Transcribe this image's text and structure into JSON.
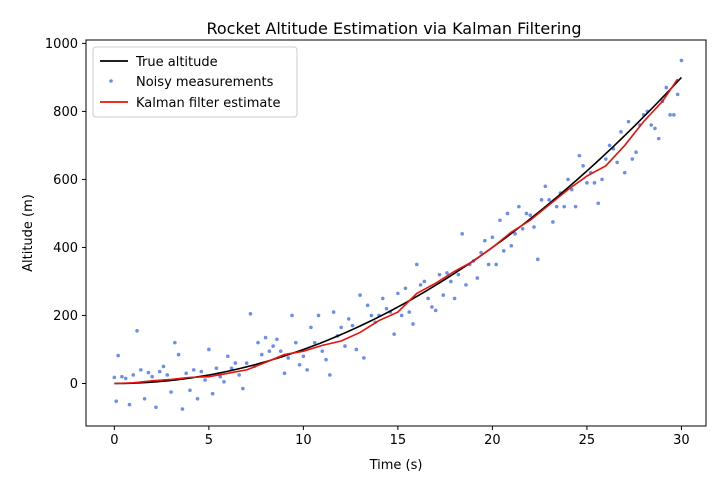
{
  "chart_data": {
    "type": "line",
    "title": "Rocket Altitude Estimation via Kalman Filtering",
    "xlabel": "Time (s)",
    "ylabel": "Altitude (m)",
    "xlim": [
      -1.5,
      31.3
    ],
    "ylim": [
      -125,
      1010
    ],
    "xticks": [
      0,
      5,
      10,
      15,
      20,
      25,
      30
    ],
    "yticks": [
      0,
      200,
      400,
      600,
      800,
      1000
    ],
    "grid": false,
    "legend_position": "top-left",
    "legend": [
      "True altitude",
      "Noisy measurements",
      "Kalman filter estimate"
    ],
    "series": [
      {
        "name": "True altitude",
        "kind": "line",
        "color": "#000000",
        "model": "altitude = 1.0 * t^2",
        "x": [
          0,
          2,
          4,
          6,
          8,
          10,
          12,
          14,
          16,
          18,
          20,
          22,
          24,
          26,
          28,
          30
        ],
        "y": [
          0,
          4,
          16,
          36,
          64,
          100,
          144,
          196,
          256,
          324,
          400,
          484,
          576,
          676,
          784,
          900
        ]
      },
      {
        "name": "Noisy measurements",
        "kind": "scatter",
        "color": "#6a8ef0",
        "noise_std": 50,
        "x": [
          0,
          0.1,
          0.2,
          0.4,
          0.6,
          0.8,
          1.0,
          1.2,
          1.4,
          1.6,
          1.8,
          2.0,
          2.2,
          2.4,
          2.6,
          2.8,
          3.0,
          3.2,
          3.4,
          3.6,
          3.8,
          4.0,
          4.2,
          4.4,
          4.6,
          4.8,
          5.0,
          5.2,
          5.4,
          5.6,
          5.8,
          6.0,
          6.2,
          6.4,
          6.6,
          6.8,
          7.0,
          7.2,
          7.4,
          7.6,
          7.8,
          8.0,
          8.2,
          8.4,
          8.6,
          8.8,
          9.0,
          9.2,
          9.4,
          9.6,
          9.8,
          10.0,
          10.2,
          10.4,
          10.6,
          10.8,
          11.0,
          11.2,
          11.4,
          11.6,
          11.8,
          12.0,
          12.2,
          12.4,
          12.6,
          12.8,
          13.0,
          13.2,
          13.4,
          13.6,
          13.8,
          14.0,
          14.2,
          14.4,
          14.6,
          14.8,
          15.0,
          15.2,
          15.4,
          15.6,
          15.8,
          16.0,
          16.2,
          16.4,
          16.6,
          16.8,
          17.0,
          17.2,
          17.4,
          17.6,
          17.8,
          18.0,
          18.2,
          18.4,
          18.6,
          18.8,
          19.0,
          19.2,
          19.4,
          19.6,
          19.8,
          20.0,
          20.2,
          20.4,
          20.6,
          20.8,
          21.0,
          21.2,
          21.4,
          21.6,
          21.8,
          22.0,
          22.2,
          22.4,
          22.6,
          22.8,
          23.0,
          23.2,
          23.4,
          23.6,
          23.8,
          24.0,
          24.2,
          24.4,
          24.6,
          24.8,
          25.0,
          25.2,
          25.4,
          25.6,
          25.8,
          26.0,
          26.2,
          26.4,
          26.6,
          26.8,
          27.0,
          27.2,
          27.4,
          27.6,
          27.8,
          28.0,
          28.2,
          28.4,
          28.6,
          28.8,
          29.0,
          29.2,
          29.4,
          29.6,
          29.8,
          30.0
        ],
        "y": [
          18,
          -52,
          82,
          20,
          15,
          -62,
          25,
          155,
          40,
          -45,
          32,
          20,
          -70,
          35,
          50,
          25,
          -25,
          120,
          85,
          -75,
          30,
          -20,
          40,
          -45,
          35,
          10,
          100,
          -30,
          45,
          20,
          5,
          80,
          45,
          60,
          25,
          -15,
          60,
          205,
          50,
          120,
          85,
          135,
          95,
          110,
          130,
          95,
          30,
          75,
          200,
          120,
          55,
          80,
          40,
          165,
          120,
          200,
          95,
          70,
          25,
          210,
          140,
          165,
          110,
          190,
          170,
          100,
          260,
          75,
          230,
          200,
          180,
          200,
          250,
          220,
          210,
          145,
          265,
          200,
          280,
          210,
          175,
          350,
          290,
          300,
          250,
          225,
          215,
          320,
          260,
          325,
          300,
          250,
          320,
          440,
          290,
          350,
          360,
          310,
          385,
          420,
          350,
          430,
          350,
          480,
          390,
          500,
          405,
          440,
          520,
          455,
          500,
          495,
          460,
          365,
          540,
          580,
          540,
          475,
          520,
          560,
          520,
          600,
          570,
          520,
          670,
          640,
          590,
          620,
          590,
          530,
          600,
          660,
          700,
          690,
          650,
          740,
          620,
          770,
          660,
          680,
          760,
          790,
          800,
          760,
          750,
          720,
          830,
          870,
          790,
          790,
          850,
          950
        ]
      },
      {
        "name": "Kalman filter estimate",
        "kind": "line",
        "color": "#e8120c",
        "x": [
          0,
          1,
          2,
          3,
          4,
          5,
          6,
          7,
          8,
          9,
          10,
          11,
          12,
          13,
          14,
          15,
          16,
          17,
          18,
          19,
          20,
          21,
          22,
          23,
          24,
          25,
          26,
          27,
          28,
          29,
          29.8
        ],
        "y": [
          0,
          2,
          8,
          12,
          18,
          20,
          30,
          40,
          62,
          85,
          95,
          112,
          125,
          150,
          185,
          210,
          265,
          295,
          330,
          360,
          400,
          445,
          480,
          525,
          570,
          610,
          640,
          700,
          770,
          830,
          895
        ]
      }
    ]
  }
}
